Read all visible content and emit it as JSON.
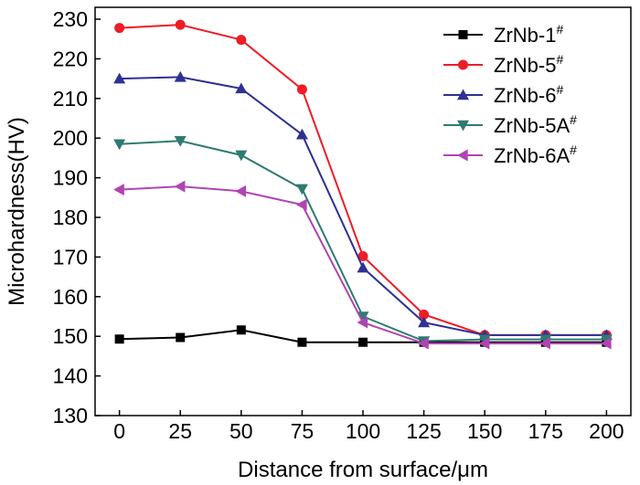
{
  "chart_data": {
    "type": "line",
    "xlabel": "Distance from surface/μm",
    "ylabel": "Microhardness(HV)",
    "x": [
      0,
      25,
      50,
      75,
      100,
      125,
      150,
      175,
      200
    ],
    "xlim": [
      -10,
      210
    ],
    "ylim": [
      130,
      233
    ],
    "xticks": [
      0,
      25,
      50,
      75,
      100,
      125,
      150,
      175,
      200
    ],
    "yticks": [
      130,
      140,
      150,
      160,
      170,
      180,
      190,
      200,
      210,
      220,
      230
    ],
    "grid": false,
    "legend": "top-right",
    "series": [
      {
        "name": "ZrNb-1",
        "sup": "#",
        "color": "#000000",
        "marker": "square",
        "values": [
          149.3,
          149.7,
          151.6,
          148.5,
          148.5,
          148.5,
          148.5,
          148.5,
          148.5
        ]
      },
      {
        "name": "ZrNb-5",
        "sup": "#",
        "color": "#ee1c25",
        "marker": "circle",
        "values": [
          227.8,
          228.6,
          224.8,
          212.3,
          170.2,
          155.5,
          150.3,
          150.3,
          150.3
        ]
      },
      {
        "name": "ZrNb-6",
        "sup": "#",
        "color": "#2e3192",
        "marker": "triangle-up",
        "values": [
          215.0,
          215.4,
          212.5,
          200.9,
          167.3,
          153.5,
          150.3,
          150.3,
          150.3
        ]
      },
      {
        "name": "ZrNb-5A",
        "sup": "#",
        "color": "#2f7a72",
        "marker": "triangle-down",
        "values": [
          198.5,
          199.3,
          195.7,
          187.2,
          155.0,
          148.8,
          149.2,
          149.2,
          149.2
        ]
      },
      {
        "name": "ZrNb-6A",
        "sup": "#",
        "color": "#b044b3",
        "marker": "triangle-left",
        "values": [
          187.0,
          187.8,
          186.6,
          183.2,
          153.5,
          148.2,
          148.2,
          148.2,
          148.2
        ]
      }
    ]
  }
}
